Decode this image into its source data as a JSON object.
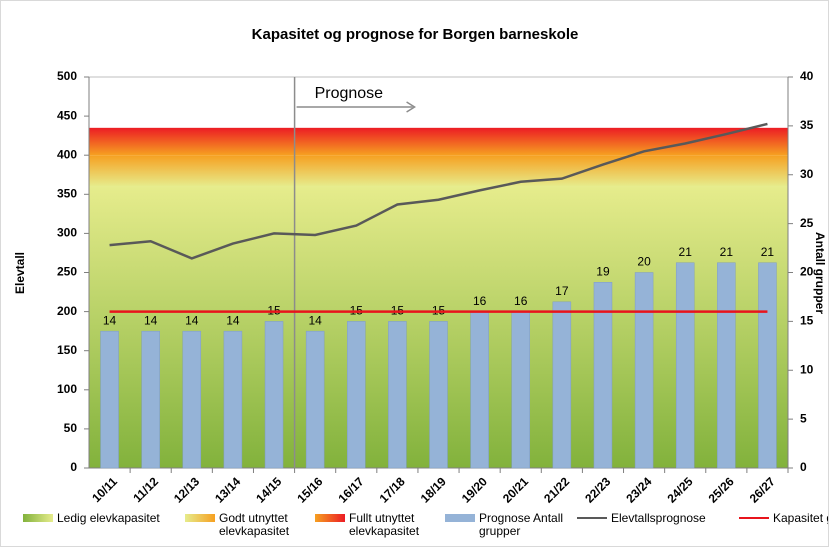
{
  "chart_data": {
    "type": "bar",
    "title": "Kapasitet og prognose for Borgen barneskole",
    "ylabel": "Elevtall",
    "y2label": "Antall grupper",
    "annotation": "Prognose",
    "categories": [
      "10/11",
      "11/12",
      "12/13",
      "13/14",
      "14/15",
      "15/16",
      "16/17",
      "17/18",
      "18/19",
      "19/20",
      "20/21",
      "21/22",
      "22/23",
      "23/24",
      "24/25",
      "25/26",
      "26/27"
    ],
    "bands": [
      {
        "name": "Ledig elevkapasitet",
        "range": [
          0,
          360
        ],
        "colors": [
          "#82b23c",
          "#e6ec8c"
        ]
      },
      {
        "name": "Godt utnyttet elevkapasitet",
        "range": [
          360,
          400
        ],
        "colors": [
          "#e6ec8c",
          "#f6a021"
        ]
      },
      {
        "name": "Fullt utnyttet elevkapasitet",
        "range": [
          400,
          435
        ],
        "colors": [
          "#f6a021",
          "#ec1c24"
        ]
      }
    ],
    "series": [
      {
        "name": "Prognose Antall grupper",
        "type": "bar",
        "axis": "y2",
        "color": "#95b3d7",
        "values": [
          14,
          14,
          14,
          14,
          15,
          14,
          15,
          15,
          15,
          16,
          16,
          17,
          19,
          20,
          21,
          21,
          21
        ]
      },
      {
        "name": "Elevtallsprognose",
        "type": "line",
        "axis": "y",
        "color": "#595959",
        "values": [
          285,
          290,
          268,
          287,
          300,
          298,
          310,
          337,
          343,
          355,
          366,
          370,
          388,
          405,
          415,
          427,
          440
        ]
      },
      {
        "name": "Kapasitet grupper",
        "type": "line",
        "axis": "y2",
        "color": "#e8141c",
        "values": [
          16,
          16,
          16,
          16,
          16,
          16,
          16,
          16,
          16,
          16,
          16,
          16,
          16,
          16,
          16,
          16,
          16
        ]
      }
    ],
    "ylim": [
      0,
      500
    ],
    "yticks": [
      0,
      50,
      100,
      150,
      200,
      250,
      300,
      350,
      400,
      450,
      500
    ],
    "y2lim": [
      0,
      40
    ],
    "y2ticks": [
      0,
      5,
      10,
      15,
      20,
      25,
      30,
      35,
      40
    ]
  }
}
